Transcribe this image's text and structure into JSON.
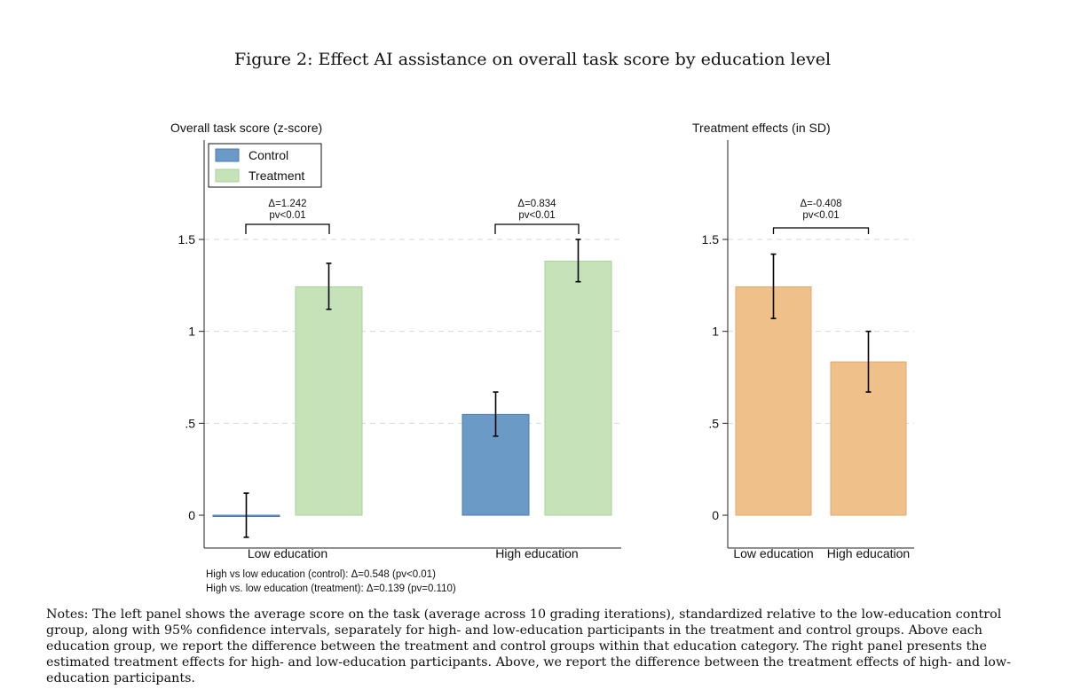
{
  "figure": {
    "title": "Figure 2: Effect AI assistance on overall task score by education level",
    "side_mark": "30",
    "notes": "Notes: The left panel shows the average score on the task (average across 10 grading iterations), standardized relative to the low-education control group, along with 95% confidence intervals, separately for high- and low-education participants in the treatment and control groups. Above each education group, we report the difference between the treatment and control groups within that education category. The right panel presents the estimated treatment effects for high- and low-education participants. Above, we report the difference between the treatment effects of high- and low-education participants."
  },
  "colors": {
    "control": "#6c9ac7",
    "control_edge": "#4a7bb0",
    "treatment": "#c5e2b9",
    "treatment_edge": "#a9d19a",
    "effect": "#f0c08a",
    "effect_edge": "#e3a969",
    "grid": "#d9d9d9",
    "axis": "#222222"
  },
  "chart_data": [
    {
      "type": "bar",
      "title": "",
      "ylabel": "Overall task score (z-score)",
      "xlabel": "",
      "ylim": [
        -0.2,
        2.0
      ],
      "yticks": [
        0,
        0.5,
        1,
        1.5
      ],
      "ytick_labels": [
        "0",
        ".5",
        "1",
        "1.5"
      ],
      "grid": true,
      "legend_position": "top-left",
      "categories": [
        "Low education",
        "High education"
      ],
      "series": [
        {
          "name": "Control",
          "values": [
            0.0,
            0.548
          ],
          "ci_low": [
            -0.12,
            0.43
          ],
          "ci_high": [
            0.12,
            0.67
          ]
        },
        {
          "name": "Treatment",
          "values": [
            1.242,
            1.382
          ],
          "ci_low": [
            1.12,
            1.27
          ],
          "ci_high": [
            1.37,
            1.5
          ]
        }
      ],
      "brackets": [
        {
          "category": "Low education",
          "delta": "Δ=1.242",
          "pv": "pv<0.01"
        },
        {
          "category": "High education",
          "delta": "Δ=0.834",
          "pv": "pv<0.01"
        }
      ],
      "footnotes": [
        "High vs low education (control): Δ=0.548 (pv<0.01)",
        "High vs. low education (treatment): Δ=0.139 (pv=0.110)"
      ]
    },
    {
      "type": "bar",
      "title": "",
      "ylabel": "Treatment effects (in SD)",
      "xlabel": "",
      "ylim": [
        -0.2,
        2.0
      ],
      "yticks": [
        0,
        0.5,
        1,
        1.5
      ],
      "ytick_labels": [
        "0",
        ".5",
        "1",
        "1.5"
      ],
      "grid": true,
      "categories": [
        "Low education",
        "High education"
      ],
      "series": [
        {
          "values": [
            1.242,
            0.834
          ],
          "ci_low": [
            1.07,
            0.67
          ],
          "ci_high": [
            1.42,
            1.0
          ]
        }
      ],
      "brackets": [
        {
          "delta": "Δ=-0.408",
          "pv": "pv<0.01"
        }
      ]
    }
  ]
}
